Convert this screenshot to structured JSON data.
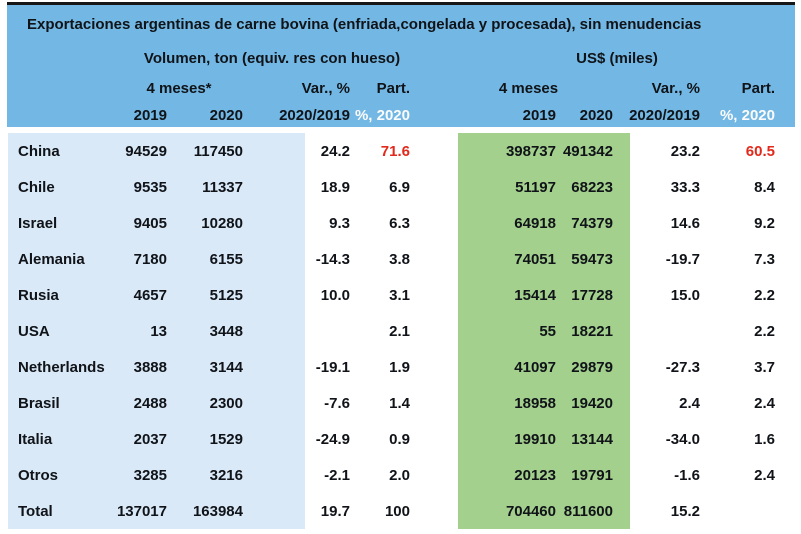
{
  "colors": {
    "header_blue": "#73b8e4",
    "body_blue": "#d9e9f8",
    "usd_green": "#a3d08d",
    "highlight_red": "#e2291b",
    "text_dark": "#101318",
    "part_sub_white": "#fbfbfb"
  },
  "chart_data": {
    "type": "table",
    "title": "Exportaciones argentinas de carne bovina (enfriada,congelada y procesada), sin menudencias",
    "sections": {
      "volume": "Volumen, ton (equiv. res con hueso)",
      "usd": "US$ (miles)"
    },
    "headers": {
      "vol_period": "4 meses*",
      "usd_period": "4 meses",
      "var_label": "Var., %",
      "part_label": "Part.",
      "year_2019": "2019",
      "year_2020": "2020",
      "var_sub": "2020/2019",
      "part_sub": "%, 2020"
    },
    "rows": [
      {
        "country": "China",
        "vol_2019": "94529",
        "vol_2020": "117450",
        "vol_var": "24.2",
        "vol_part": "71.6",
        "usd_2019": "398737",
        "usd_2020": "491342",
        "usd_var": "23.2",
        "usd_part": "60.5",
        "highlight": true
      },
      {
        "country": "Chile",
        "vol_2019": "9535",
        "vol_2020": "11337",
        "vol_var": "18.9",
        "vol_part": "6.9",
        "usd_2019": "51197",
        "usd_2020": "68223",
        "usd_var": "33.3",
        "usd_part": "8.4",
        "highlight": false
      },
      {
        "country": "Israel",
        "vol_2019": "9405",
        "vol_2020": "10280",
        "vol_var": "9.3",
        "vol_part": "6.3",
        "usd_2019": "64918",
        "usd_2020": "74379",
        "usd_var": "14.6",
        "usd_part": "9.2",
        "highlight": false
      },
      {
        "country": "Alemania",
        "vol_2019": "7180",
        "vol_2020": "6155",
        "vol_var": "-14.3",
        "vol_part": "3.8",
        "usd_2019": "74051",
        "usd_2020": "59473",
        "usd_var": "-19.7",
        "usd_part": "7.3",
        "highlight": false
      },
      {
        "country": "Rusia",
        "vol_2019": "4657",
        "vol_2020": "5125",
        "vol_var": "10.0",
        "vol_part": "3.1",
        "usd_2019": "15414",
        "usd_2020": "17728",
        "usd_var": "15.0",
        "usd_part": "2.2",
        "highlight": false
      },
      {
        "country": "USA",
        "vol_2019": "13",
        "vol_2020": "3448",
        "vol_var": "",
        "vol_part": "2.1",
        "usd_2019": "55",
        "usd_2020": "18221",
        "usd_var": "",
        "usd_part": "2.2",
        "highlight": false
      },
      {
        "country": "Netherlands",
        "vol_2019": "3888",
        "vol_2020": "3144",
        "vol_var": "-19.1",
        "vol_part": "1.9",
        "usd_2019": "41097",
        "usd_2020": "29879",
        "usd_var": "-27.3",
        "usd_part": "3.7",
        "highlight": false
      },
      {
        "country": "Brasil",
        "vol_2019": "2488",
        "vol_2020": "2300",
        "vol_var": "-7.6",
        "vol_part": "1.4",
        "usd_2019": "18958",
        "usd_2020": "19420",
        "usd_var": "2.4",
        "usd_part": "2.4",
        "highlight": false
      },
      {
        "country": "Italia",
        "vol_2019": "2037",
        "vol_2020": "1529",
        "vol_var": "-24.9",
        "vol_part": "0.9",
        "usd_2019": "19910",
        "usd_2020": "13144",
        "usd_var": "-34.0",
        "usd_part": "1.6",
        "highlight": false
      },
      {
        "country": "Otros",
        "vol_2019": "3285",
        "vol_2020": "3216",
        "vol_var": "-2.1",
        "vol_part": "2.0",
        "usd_2019": "20123",
        "usd_2020": "19791",
        "usd_var": "-1.6",
        "usd_part": "2.4",
        "highlight": false
      },
      {
        "country": "Total",
        "vol_2019": "137017",
        "vol_2020": "163984",
        "vol_var": "19.7",
        "vol_part": "100",
        "usd_2019": "704460",
        "usd_2020": "811600",
        "usd_var": "15.2",
        "usd_part": "",
        "highlight": false
      }
    ]
  }
}
